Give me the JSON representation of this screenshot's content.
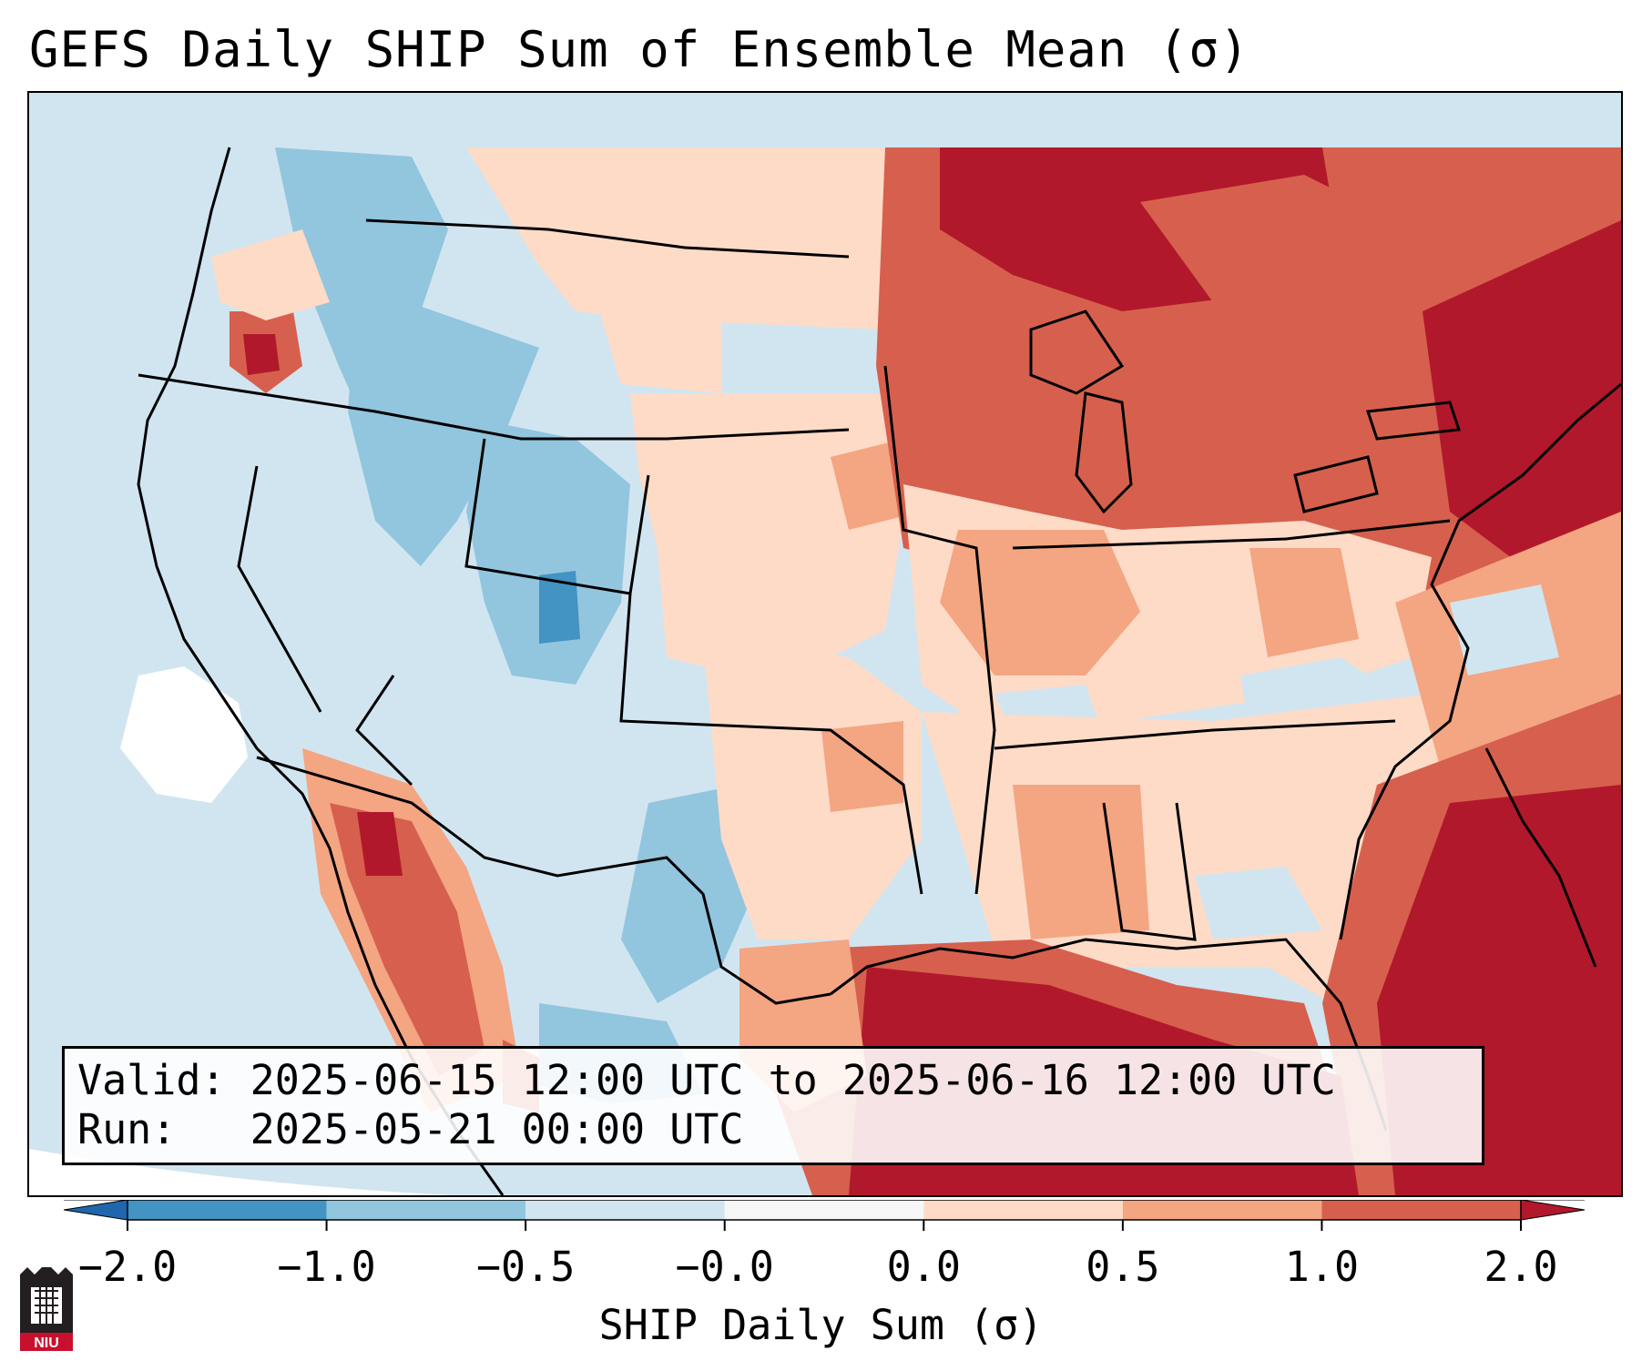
{
  "title": "GEFS Daily SHIP Sum of Ensemble Mean (σ)",
  "info": {
    "valid_line": "Valid: 2025-06-15 12:00 UTC to 2025-06-16 12:00 UTC",
    "run_line": "Run:   2025-05-21 00:00 UTC"
  },
  "colorbar": {
    "label": "SHIP Daily Sum (σ)",
    "tick_labels": [
      "−2.0",
      "−1.0",
      "−0.5",
      "−0.0",
      "0.0",
      "0.5",
      "1.0",
      "2.0"
    ],
    "bins": [
      {
        "range": "< -2.0",
        "color": "#2166ac"
      },
      {
        "range": "-2.0 to -1.0",
        "color": "#4393c3"
      },
      {
        "range": "-1.0 to -0.5",
        "color": "#92c5de"
      },
      {
        "range": "-0.5 to -0.0",
        "color": "#d1e5f0"
      },
      {
        "range": "-0.0 to 0.0",
        "color": "#f7f7f7"
      },
      {
        "range": "0.0 to 0.5",
        "color": "#fddbc7"
      },
      {
        "range": "0.5 to 1.0",
        "color": "#f4a582"
      },
      {
        "range": "1.0 to 2.0",
        "color": "#d6604d"
      },
      {
        "range": "> 2.0",
        "color": "#b2182b"
      }
    ]
  },
  "legend_colors": {
    "ocean_background": "#d1e5f0",
    "no_data": "#ffffff"
  },
  "logo": {
    "icon": "university-tower-icon",
    "text": "NIU",
    "color": "#c8102e"
  }
}
